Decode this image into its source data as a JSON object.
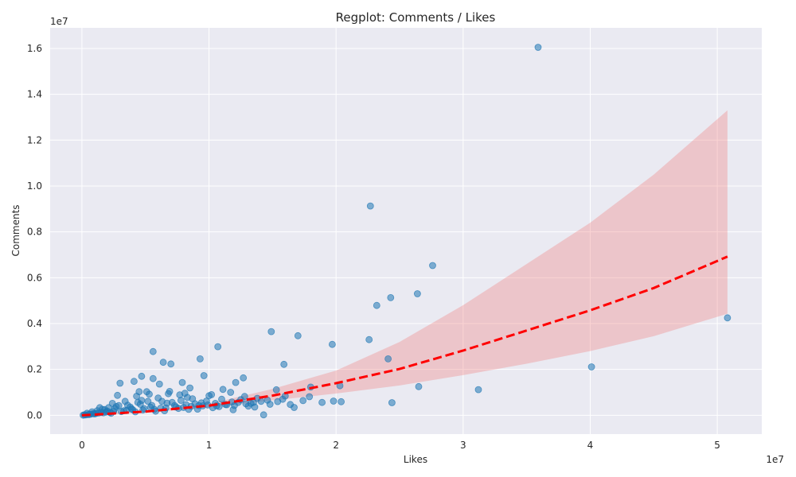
{
  "chart_data": {
    "type": "scatter",
    "title": "Regplot: Comments / Likes",
    "xlabel": "Likes",
    "ylabel": "Comments",
    "x_offset_text": "1e7",
    "y_offset_text": "1e7",
    "xlim": [
      -2500000,
      53500000
    ],
    "ylim": [
      -820000,
      16900000
    ],
    "x_ticks": [
      0,
      10000000,
      20000000,
      30000000,
      40000000,
      50000000
    ],
    "x_tick_labels": [
      "0",
      "1",
      "2",
      "3",
      "4",
      "5"
    ],
    "y_ticks": [
      0,
      2000000,
      4000000,
      6000000,
      8000000,
      10000000,
      12000000,
      14000000,
      16000000
    ],
    "y_tick_labels": [
      "0.0",
      "0.2",
      "0.4",
      "0.6",
      "0.8",
      "1.0",
      "1.2",
      "1.4",
      "1.6"
    ],
    "grid": true,
    "background": "#eaeaf2",
    "point_color": "#1f77b4",
    "line_color": "#ff0000",
    "band_color": "#f08080",
    "series": [
      {
        "kind": "points",
        "points": [
          [
            35900000,
            16050000
          ],
          [
            22700000,
            9130000
          ],
          [
            27600000,
            6530000
          ],
          [
            26400000,
            5300000
          ],
          [
            24300000,
            5130000
          ],
          [
            23200000,
            4790000
          ],
          [
            50800000,
            4250000
          ],
          [
            14900000,
            3650000
          ],
          [
            17000000,
            3470000
          ],
          [
            22600000,
            3300000
          ],
          [
            19700000,
            3090000
          ],
          [
            10700000,
            2990000
          ],
          [
            5600000,
            2780000
          ],
          [
            9300000,
            2460000
          ],
          [
            24100000,
            2460000
          ],
          [
            6400000,
            2310000
          ],
          [
            7000000,
            2240000
          ],
          [
            15900000,
            2220000
          ],
          [
            40100000,
            2110000
          ],
          [
            9600000,
            1730000
          ],
          [
            4700000,
            1700000
          ],
          [
            5600000,
            1600000
          ],
          [
            12700000,
            1630000
          ],
          [
            3000000,
            1400000
          ],
          [
            4100000,
            1480000
          ],
          [
            7900000,
            1430000
          ],
          [
            12100000,
            1430000
          ],
          [
            20300000,
            1290000
          ],
          [
            26500000,
            1250000
          ],
          [
            18000000,
            1230000
          ],
          [
            6100000,
            1360000
          ],
          [
            8500000,
            1190000
          ],
          [
            31200000,
            1120000
          ],
          [
            5100000,
            1030000
          ],
          [
            6900000,
            1040000
          ],
          [
            11100000,
            1130000
          ],
          [
            15300000,
            1110000
          ],
          [
            8100000,
            960000
          ],
          [
            4500000,
            1030000
          ],
          [
            11700000,
            1000000
          ],
          [
            2800000,
            870000
          ],
          [
            10000000,
            850000
          ],
          [
            16000000,
            840000
          ],
          [
            12800000,
            820000
          ],
          [
            17900000,
            810000
          ],
          [
            19800000,
            620000
          ],
          [
            20400000,
            590000
          ],
          [
            18900000,
            560000
          ],
          [
            24400000,
            550000
          ],
          [
            17400000,
            640000
          ],
          [
            16400000,
            470000
          ],
          [
            14300000,
            20000
          ],
          [
            9500000,
            410000
          ],
          [
            13600000,
            360000
          ],
          [
            11900000,
            240000
          ],
          [
            14800000,
            480000
          ],
          [
            6500000,
            200000
          ],
          [
            8400000,
            260000
          ],
          [
            3900000,
            280000
          ],
          [
            5400000,
            350000
          ],
          [
            7300000,
            420000
          ],
          [
            2000000,
            180000
          ],
          [
            2600000,
            290000
          ],
          [
            4200000,
            150000
          ],
          [
            6200000,
            310000
          ],
          [
            8900000,
            500000
          ],
          [
            10300000,
            330000
          ],
          [
            12300000,
            560000
          ],
          [
            13100000,
            400000
          ],
          [
            15400000,
            600000
          ],
          [
            16700000,
            340000
          ],
          [
            1500000,
            120000
          ],
          [
            1000000,
            60000
          ],
          [
            600000,
            40000
          ],
          [
            300000,
            15000
          ],
          [
            100000,
            5000
          ],
          [
            2300000,
            90000
          ],
          [
            3300000,
            200000
          ],
          [
            4800000,
            230000
          ],
          [
            5800000,
            180000
          ],
          [
            7600000,
            300000
          ],
          [
            9100000,
            270000
          ],
          [
            10800000,
            380000
          ],
          [
            11400000,
            460000
          ],
          [
            1800000,
            250000
          ],
          [
            2700000,
            380000
          ],
          [
            3600000,
            440000
          ],
          [
            4400000,
            560000
          ],
          [
            5200000,
            610000
          ],
          [
            6700000,
            530000
          ],
          [
            7800000,
            650000
          ],
          [
            8700000,
            720000
          ],
          [
            9800000,
            620000
          ],
          [
            11000000,
            700000
          ],
          [
            12500000,
            680000
          ],
          [
            13800000,
            740000
          ],
          [
            400000,
            90000
          ],
          [
            800000,
            150000
          ],
          [
            1200000,
            200000
          ],
          [
            1600000,
            260000
          ],
          [
            2100000,
            330000
          ],
          [
            2900000,
            420000
          ],
          [
            3800000,
            360000
          ],
          [
            4600000,
            480000
          ],
          [
            5500000,
            430000
          ],
          [
            6300000,
            610000
          ],
          [
            7100000,
            560000
          ],
          [
            8200000,
            460000
          ],
          [
            9400000,
            540000
          ],
          [
            10500000,
            520000
          ],
          [
            11800000,
            580000
          ],
          [
            13300000,
            520000
          ],
          [
            14600000,
            660000
          ],
          [
            15800000,
            700000
          ],
          [
            200000,
            20000
          ],
          [
            500000,
            30000
          ],
          [
            700000,
            50000
          ],
          [
            900000,
            70000
          ],
          [
            1100000,
            80000
          ],
          [
            1300000,
            100000
          ],
          [
            1700000,
            110000
          ],
          [
            1900000,
            140000
          ],
          [
            2200000,
            130000
          ],
          [
            2500000,
            170000
          ],
          [
            3100000,
            160000
          ],
          [
            3500000,
            210000
          ],
          [
            4000000,
            240000
          ],
          [
            4900000,
            290000
          ],
          [
            5700000,
            260000
          ],
          [
            6600000,
            320000
          ],
          [
            7400000,
            360000
          ],
          [
            8000000,
            340000
          ],
          [
            8600000,
            390000
          ],
          [
            9200000,
            420000
          ],
          [
            9900000,
            450000
          ],
          [
            10600000,
            410000
          ],
          [
            11300000,
            470000
          ],
          [
            12000000,
            430000
          ],
          [
            12900000,
            500000
          ],
          [
            13500000,
            560000
          ],
          [
            14100000,
            610000
          ],
          [
            6000000,
            750000
          ],
          [
            4300000,
            830000
          ],
          [
            5300000,
            920000
          ],
          [
            3400000,
            610000
          ],
          [
            2400000,
            520000
          ],
          [
            1400000,
            330000
          ],
          [
            7700000,
            890000
          ],
          [
            8300000,
            780000
          ],
          [
            6800000,
            940000
          ],
          [
            10200000,
            900000
          ],
          [
            4700000,
            650000
          ]
        ]
      },
      {
        "kind": "fit",
        "x": [
          0,
          5000000,
          10000000,
          15000000,
          20000000,
          25000000,
          30000000,
          35000000,
          40000000,
          45000000,
          50800000
        ],
        "y": [
          0,
          160000,
          420000,
          860000,
          1400000,
          2020000,
          2820000,
          3700000,
          4580000,
          5550000,
          6920000
        ],
        "ci_low": [
          -40000,
          120000,
          350000,
          650000,
          950000,
          1300000,
          1750000,
          2250000,
          2800000,
          3450000,
          4430000
        ],
        "ci_high": [
          40000,
          200000,
          500000,
          1150000,
          1950000,
          3200000,
          4800000,
          6600000,
          8400000,
          10500000,
          13300000
        ]
      }
    ]
  }
}
